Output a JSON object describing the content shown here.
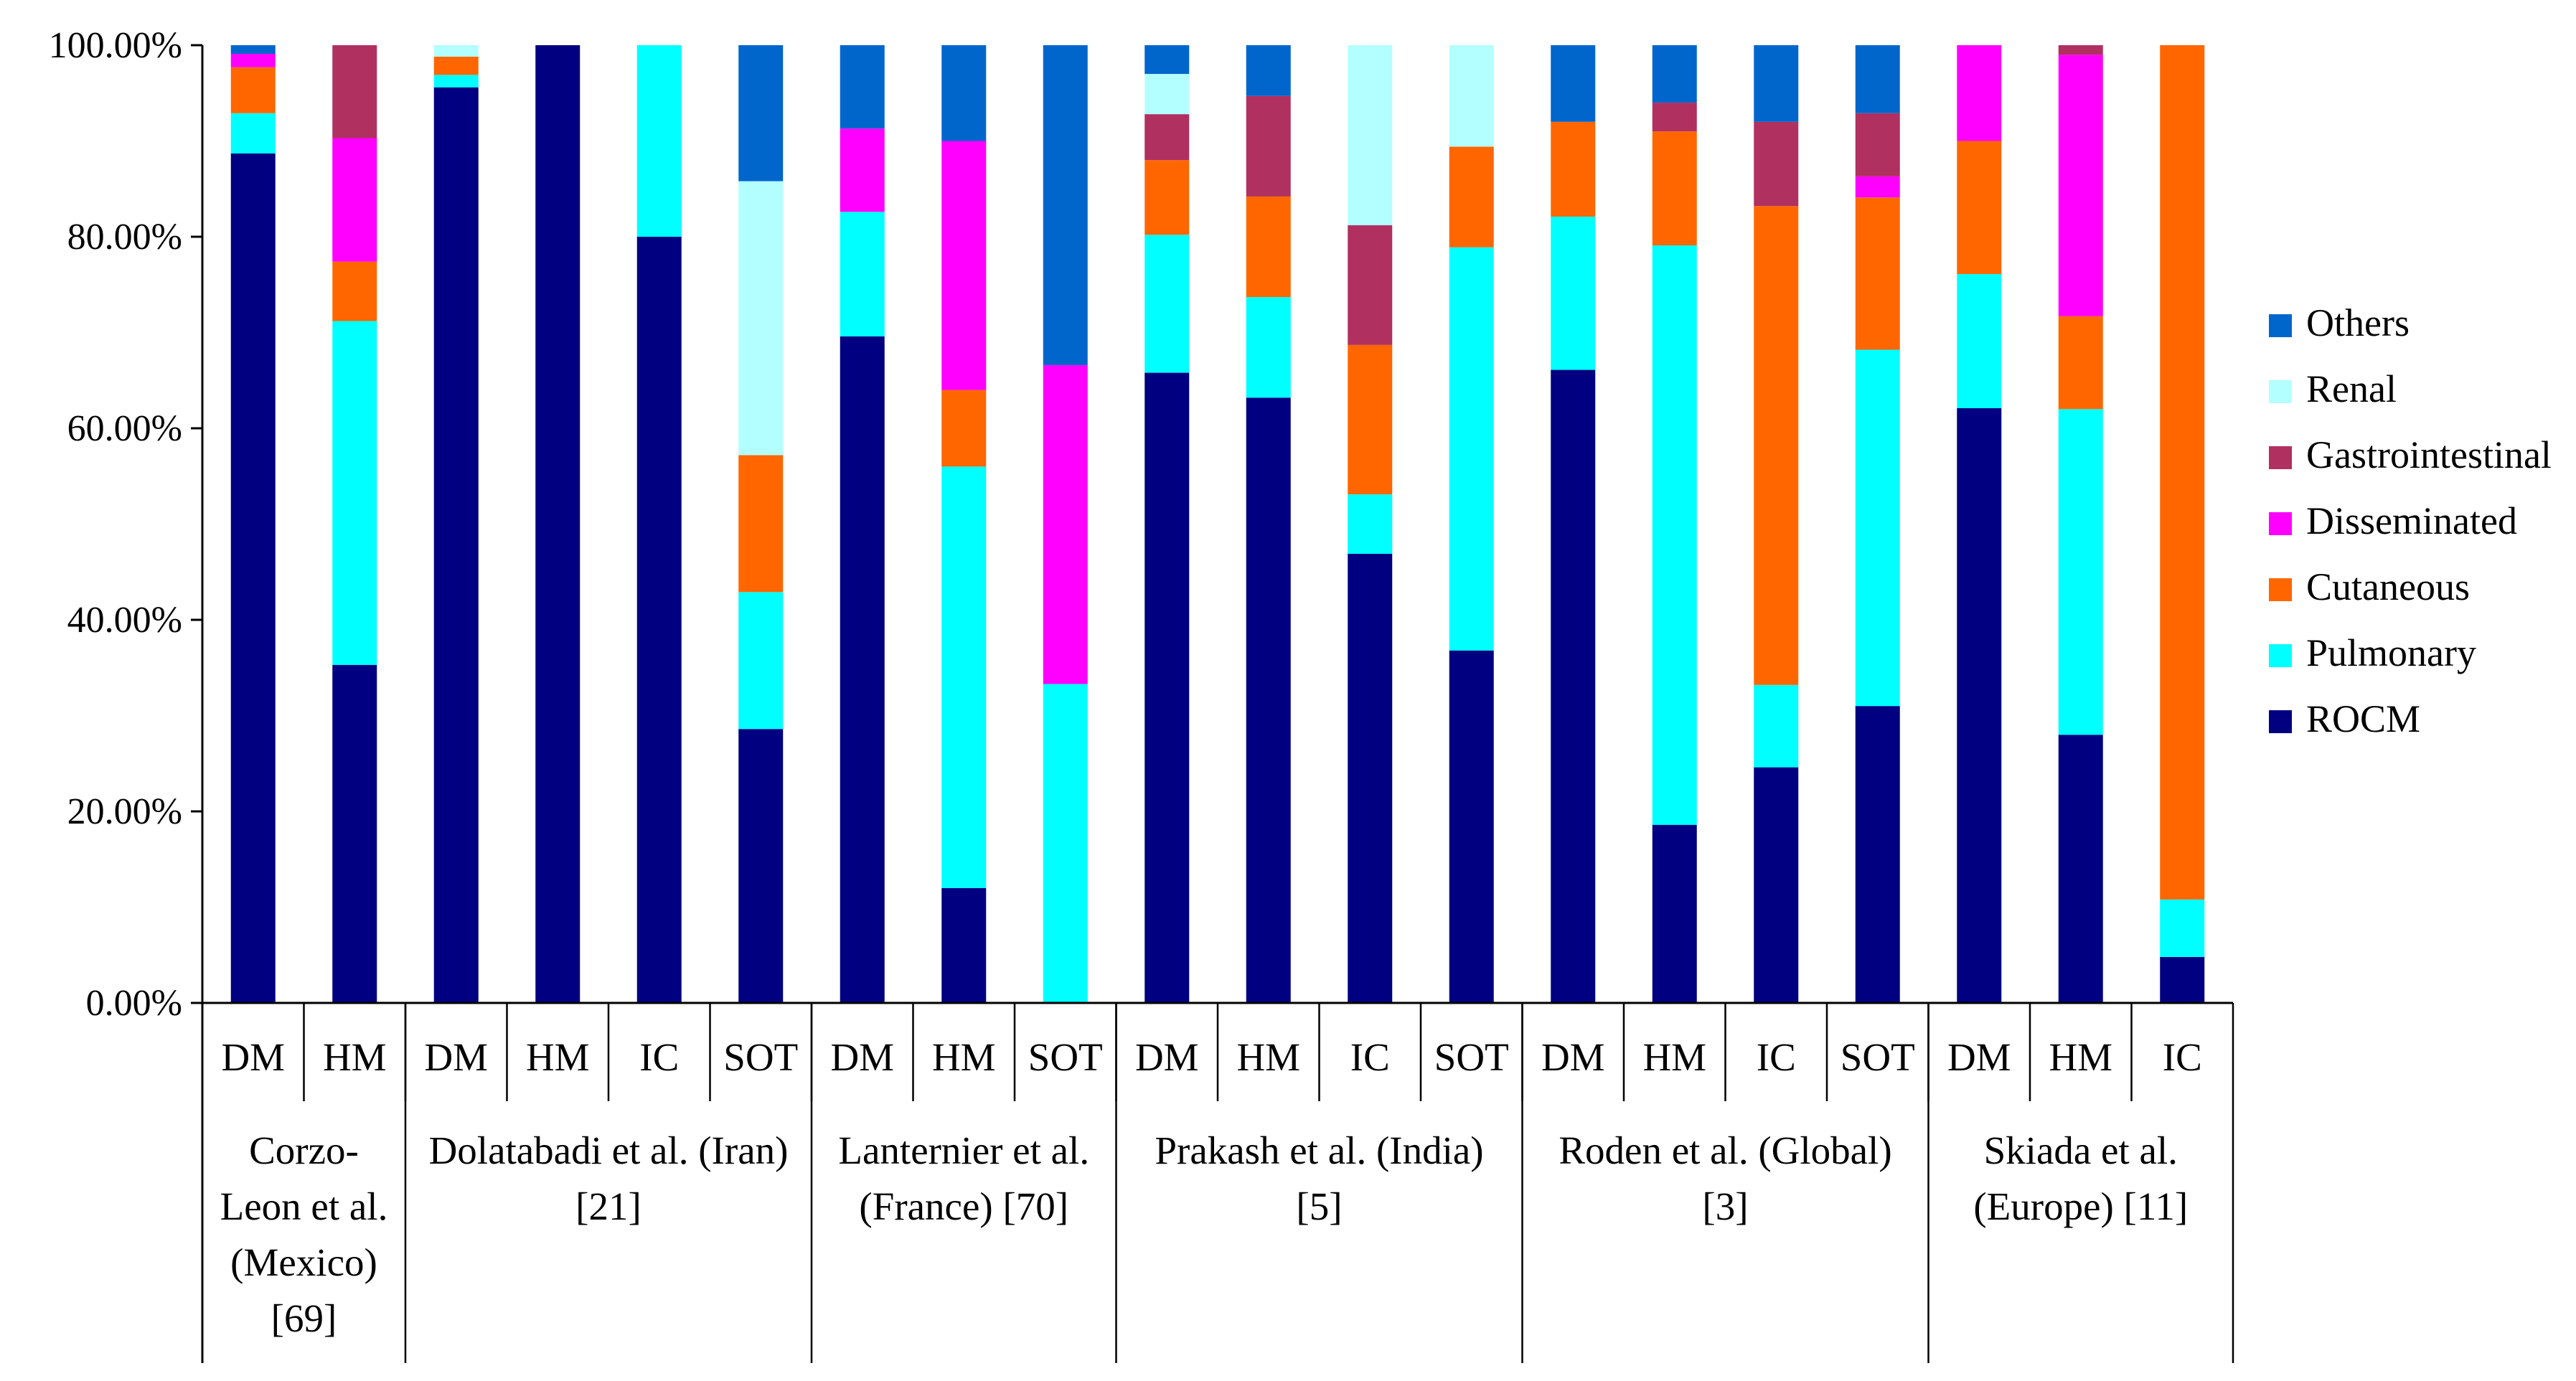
{
  "chart_data": {
    "type": "bar",
    "stacked": true,
    "title": "",
    "xlabel": "",
    "ylabel": "",
    "ylim": [
      0,
      100
    ],
    "y_ticks": [
      0,
      20,
      40,
      60,
      80,
      100
    ],
    "y_tick_format": "percent_2dp",
    "grid": false,
    "legend_position": "right",
    "legend_order": [
      "Others",
      "Renal",
      "Gastrointestinal",
      "Disseminated",
      "Cutaneous",
      "Pulmonary",
      "ROCM"
    ],
    "stack_order": [
      "ROCM",
      "Pulmonary",
      "Cutaneous",
      "Disseminated",
      "Gastrointestinal",
      "Renal",
      "Others"
    ],
    "colors": {
      "ROCM": "#000080",
      "Pulmonary": "#00FFFF",
      "Cutaneous": "#FF6600",
      "Disseminated": "#FF00FF",
      "Gastrointestinal": "#B03060",
      "Renal": "#B3FFFF",
      "Others": "#0066CC"
    },
    "groups": [
      {
        "label": [
          "Corzo-",
          "Leon et al.",
          "(Mexico)",
          "[69]"
        ],
        "bars": [
          {
            "category": "DM",
            "values": {
              "ROCM": 88.7,
              "Pulmonary": 4.2,
              "Cutaneous": 4.8,
              "Disseminated": 1.4,
              "Gastrointestinal": 0,
              "Renal": 0,
              "Others": 0.9
            }
          },
          {
            "category": "HM",
            "values": {
              "ROCM": 35.3,
              "Pulmonary": 35.9,
              "Cutaneous": 6.2,
              "Disseminated": 12.9,
              "Gastrointestinal": 9.7,
              "Renal": 0,
              "Others": 0
            }
          }
        ]
      },
      {
        "label": [
          "Dolatabadi et al. (Iran)",
          "[21]"
        ],
        "bars": [
          {
            "category": "DM",
            "values": {
              "ROCM": 95.6,
              "Pulmonary": 1.3,
              "Cutaneous": 1.9,
              "Disseminated": 0,
              "Gastrointestinal": 0,
              "Renal": 1.2,
              "Others": 0
            }
          },
          {
            "category": "HM",
            "values": {
              "ROCM": 100,
              "Pulmonary": 0,
              "Cutaneous": 0,
              "Disseminated": 0,
              "Gastrointestinal": 0,
              "Renal": 0,
              "Others": 0
            }
          },
          {
            "category": "IC",
            "values": {
              "ROCM": 80,
              "Pulmonary": 20,
              "Cutaneous": 0,
              "Disseminated": 0,
              "Gastrointestinal": 0,
              "Renal": 0,
              "Others": 0
            }
          },
          {
            "category": "SOT",
            "values": {
              "ROCM": 28.6,
              "Pulmonary": 14.3,
              "Cutaneous": 14.3,
              "Disseminated": 0,
              "Gastrointestinal": 0,
              "Renal": 28.6,
              "Others": 14.2
            }
          }
        ]
      },
      {
        "label": [
          "Lanternier et al.",
          "(France) [70]"
        ],
        "bars": [
          {
            "category": "DM",
            "values": {
              "ROCM": 69.6,
              "Pulmonary": 13.0,
              "Cutaneous": 0,
              "Disseminated": 8.7,
              "Gastrointestinal": 0,
              "Renal": 0,
              "Others": 8.7
            }
          },
          {
            "category": "HM",
            "values": {
              "ROCM": 12.0,
              "Pulmonary": 44.0,
              "Cutaneous": 8.0,
              "Disseminated": 26.0,
              "Gastrointestinal": 0,
              "Renal": 0,
              "Others": 10.0
            }
          },
          {
            "category": "SOT",
            "values": {
              "ROCM": 0,
              "Pulmonary": 33.3,
              "Cutaneous": 0,
              "Disseminated": 33.3,
              "Gastrointestinal": 0,
              "Renal": 0,
              "Others": 33.4
            }
          }
        ]
      },
      {
        "label": [
          "Prakash et al. (India)",
          "[5]"
        ],
        "bars": [
          {
            "category": "DM",
            "values": {
              "ROCM": 65.8,
              "Pulmonary": 14.4,
              "Cutaneous": 7.8,
              "Disseminated": 0,
              "Gastrointestinal": 4.8,
              "Renal": 4.2,
              "Others": 3.0
            }
          },
          {
            "category": "HM",
            "values": {
              "ROCM": 63.2,
              "Pulmonary": 10.5,
              "Cutaneous": 10.5,
              "Disseminated": 0,
              "Gastrointestinal": 10.5,
              "Renal": 0,
              "Others": 5.3
            }
          },
          {
            "category": "IC",
            "values": {
              "ROCM": 46.9,
              "Pulmonary": 6.2,
              "Cutaneous": 15.6,
              "Disseminated": 0,
              "Gastrointestinal": 12.5,
              "Renal": 18.8,
              "Others": 0
            }
          },
          {
            "category": "SOT",
            "values": {
              "ROCM": 36.8,
              "Pulmonary": 42.1,
              "Cutaneous": 10.5,
              "Disseminated": 0,
              "Gastrointestinal": 0,
              "Renal": 10.6,
              "Others": 0
            }
          }
        ]
      },
      {
        "label": [
          "Roden et al. (Global)",
          "[3]"
        ],
        "bars": [
          {
            "category": "DM",
            "values": {
              "ROCM": 66.1,
              "Pulmonary": 16.0,
              "Cutaneous": 9.9,
              "Disseminated": 0,
              "Gastrointestinal": 0,
              "Renal": 0,
              "Others": 8.0
            }
          },
          {
            "category": "HM",
            "values": {
              "ROCM": 18.6,
              "Pulmonary": 60.5,
              "Cutaneous": 11.9,
              "Disseminated": 0,
              "Gastrointestinal": 3.0,
              "Renal": 0,
              "Others": 6.0
            }
          },
          {
            "category": "IC",
            "values": {
              "ROCM": 24.6,
              "Pulmonary": 8.6,
              "Cutaneous": 50.0,
              "Disseminated": 0,
              "Gastrointestinal": 8.8,
              "Renal": 0,
              "Others": 8.0
            }
          },
          {
            "category": "SOT",
            "values": {
              "ROCM": 31.0,
              "Pulmonary": 37.2,
              "Cutaneous": 15.9,
              "Disseminated": 2.2,
              "Gastrointestinal": 6.6,
              "Renal": 0,
              "Others": 7.1
            }
          }
        ]
      },
      {
        "label": [
          "Skiada et al.",
          "(Europe) [11]"
        ],
        "bars": [
          {
            "category": "DM",
            "values": {
              "ROCM": 62.1,
              "Pulmonary": 14.0,
              "Cutaneous": 13.9,
              "Disseminated": 10.0,
              "Gastrointestinal": 0,
              "Renal": 0,
              "Others": 0
            }
          },
          {
            "category": "HM",
            "values": {
              "ROCM": 28.0,
              "Pulmonary": 34.0,
              "Cutaneous": 9.7,
              "Disseminated": 27.3,
              "Gastrointestinal": 1.0,
              "Renal": 0,
              "Others": 0
            }
          },
          {
            "category": "IC",
            "values": {
              "ROCM": 4.8,
              "Pulmonary": 6.0,
              "Cutaneous": 89.2,
              "Disseminated": 0,
              "Gastrointestinal": 0,
              "Renal": 0,
              "Others": 0
            }
          }
        ]
      }
    ]
  }
}
